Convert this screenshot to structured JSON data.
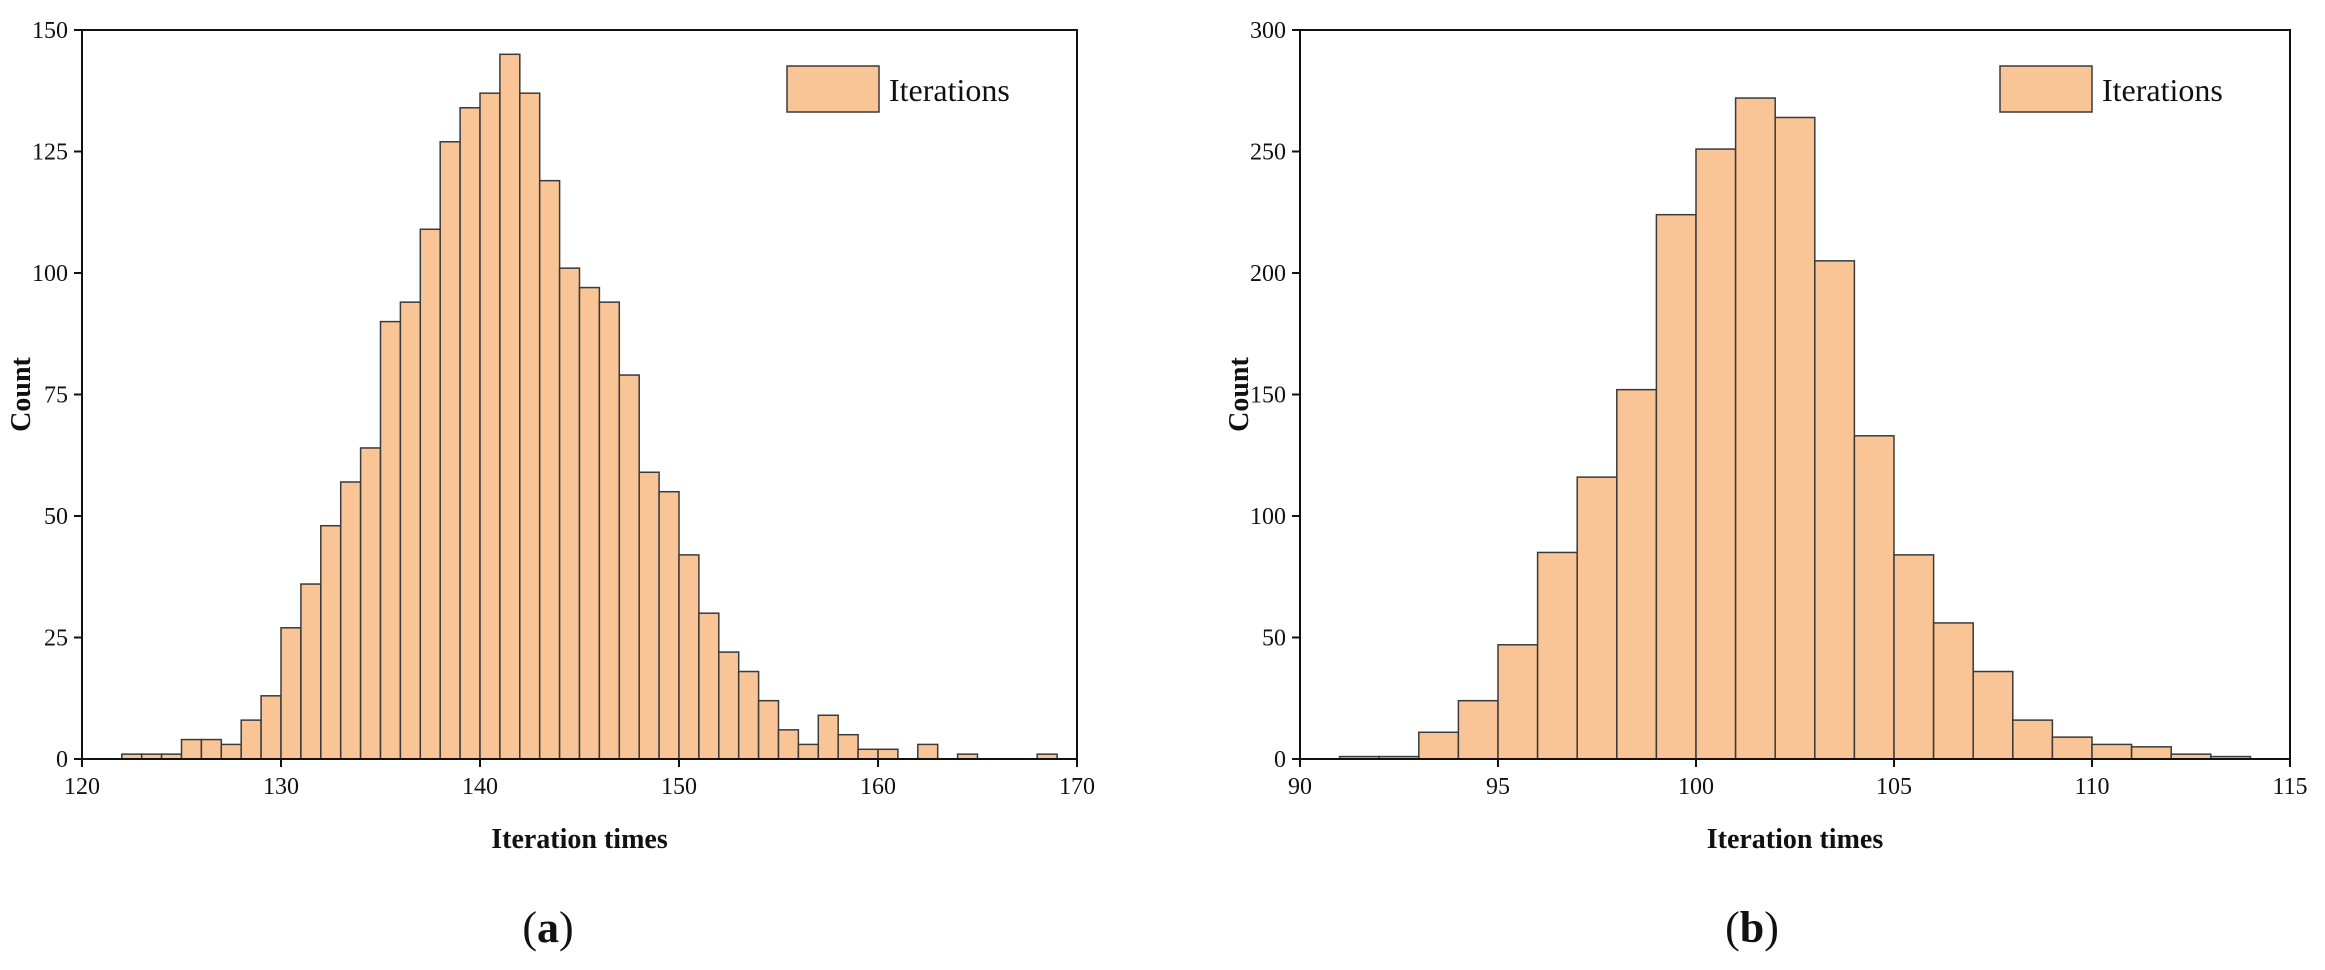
{
  "colors": {
    "bar_fill": "#F9C596",
    "bar_stroke": "#3a3a3a",
    "axis": "#111111"
  },
  "chart_data": [
    {
      "type": "bar",
      "subtype": "histogram",
      "caption_letter": "a",
      "xlabel": "Iteration times",
      "ylabel": "Count",
      "legend_label": "Iterations",
      "legend_position": "top-right",
      "xlim": [
        120,
        170
      ],
      "ylim": [
        0,
        150
      ],
      "xticks": [
        "120",
        "130",
        "140",
        "150",
        "160",
        "170"
      ],
      "xtick_values": [
        120,
        130,
        140,
        150,
        160,
        170
      ],
      "yticks": [
        "0",
        "25",
        "50",
        "75",
        "100",
        "125",
        "150"
      ],
      "ytick_values": [
        0,
        25,
        50,
        75,
        100,
        125,
        150
      ],
      "bin_width": 1,
      "bin_starts": [
        122,
        123,
        124,
        125,
        126,
        127,
        128,
        129,
        130,
        131,
        132,
        133,
        134,
        135,
        136,
        137,
        138,
        139,
        140,
        141,
        142,
        143,
        144,
        145,
        146,
        147,
        148,
        149,
        150,
        151,
        152,
        153,
        154,
        155,
        156,
        157,
        158,
        159,
        160,
        162,
        164,
        168
      ],
      "values": [
        1,
        1,
        1,
        4,
        4,
        3,
        8,
        13,
        27,
        36,
        48,
        57,
        64,
        90,
        94,
        109,
        127,
        134,
        137,
        145,
        137,
        119,
        101,
        97,
        94,
        79,
        59,
        55,
        42,
        30,
        22,
        18,
        12,
        6,
        3,
        9,
        5,
        2,
        2,
        3,
        1,
        1
      ]
    },
    {
      "type": "bar",
      "subtype": "histogram",
      "caption_letter": "b",
      "xlabel": "Iteration times",
      "ylabel": "Count",
      "legend_label": "Iterations",
      "legend_position": "top-right",
      "xlim": [
        90,
        115
      ],
      "ylim": [
        0,
        300
      ],
      "xticks": [
        "90",
        "95",
        "100",
        "105",
        "110",
        "115"
      ],
      "xtick_values": [
        90,
        95,
        100,
        105,
        110,
        115
      ],
      "yticks": [
        "0",
        "50",
        "100",
        "150",
        "200",
        "250",
        "300"
      ],
      "ytick_values": [
        0,
        50,
        100,
        150,
        200,
        250,
        300
      ],
      "bin_width": 1,
      "bin_starts": [
        91,
        92,
        93,
        94,
        95,
        96,
        97,
        98,
        99,
        100,
        101,
        102,
        103,
        104,
        105,
        106,
        107,
        108,
        109,
        110,
        111,
        112,
        113
      ],
      "values": [
        1,
        1,
        11,
        24,
        47,
        85,
        116,
        152,
        224,
        251,
        272,
        264,
        205,
        133,
        84,
        56,
        36,
        16,
        9,
        6,
        5,
        2,
        1
      ]
    }
  ]
}
